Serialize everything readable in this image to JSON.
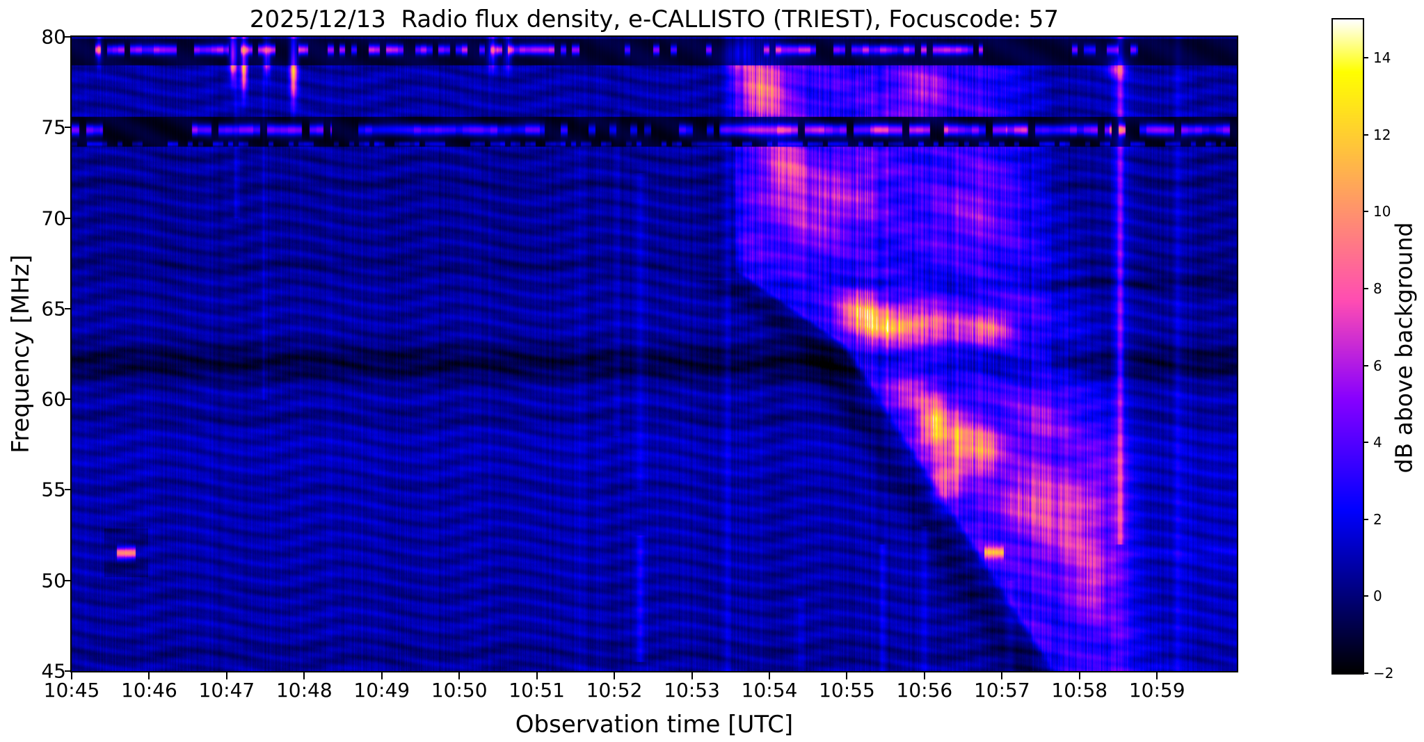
{
  "figure": {
    "title": "2025/12/13  Radio flux density, e-CALLISTO (TRIEST), Focuscode: 57",
    "instrument": "e-CALLISTO",
    "station": "TRIEST",
    "focuscode": "57",
    "date": "2025/12/13"
  },
  "axes": {
    "x": {
      "label": "Observation time [UTC]",
      "ticks": [
        "10:45",
        "10:46",
        "10:47",
        "10:48",
        "10:49",
        "10:50",
        "10:51",
        "10:52",
        "10:53",
        "10:54",
        "10:55",
        "10:56",
        "10:57",
        "10:58",
        "10:59"
      ],
      "range_minutes": [
        0,
        15.03
      ]
    },
    "y": {
      "label": "Frequency [MHz]",
      "ticks": [
        80,
        75,
        70,
        65,
        60,
        55,
        50,
        45
      ],
      "range": [
        45,
        80
      ]
    }
  },
  "colorbar": {
    "label": "dB above background",
    "ticks": [
      14,
      12,
      10,
      8,
      6,
      4,
      2,
      0,
      -2
    ],
    "range": [
      -2,
      15
    ],
    "colormap": "gnuplot2"
  },
  "chart_data": {
    "type": "heatmap",
    "subtype": "solar-radio-spectrogram",
    "title": "2025/12/13  Radio flux density, e-CALLISTO (TRIEST), Focuscode: 57",
    "xlabel": "Observation time [UTC]",
    "ylabel": "Frequency [MHz]",
    "colorbar_label": "dB above background",
    "colormap": "gnuplot2",
    "x_ticks": [
      "10:45",
      "10:46",
      "10:47",
      "10:48",
      "10:49",
      "10:50",
      "10:51",
      "10:52",
      "10:53",
      "10:54",
      "10:55",
      "10:56",
      "10:57",
      "10:58",
      "10:59"
    ],
    "ylim": [
      45,
      80
    ],
    "clim": [
      -2,
      15
    ],
    "grid": false,
    "events": [
      "Drifting solar radio burst: onset ~10:53.4 UT at 67-80 MHz, leading edge drifts down to ~47 MHz by ~10:57.3 UT, emission fading by ~10:59 UT",
      "Bright burst cores: 62-66 MHz near 10:55, 56-61 MHz near 10:56 (up to ~13 dB above background)",
      "Persistent RFI channels with dark interference bands at ~79.3 MHz and ~74.9 MHz",
      "Narrow RFI bursts at 51.5 MHz near 10:45.7 and 10:56.9",
      "Bright broadband vertical stripe at ~10:58.5",
      "Dark absorption-like bands near 62-64 MHz and 58.5-59.5 MHz; wavy interference-fringe background"
    ],
    "render_model": {
      "tmax": 15.03,
      "background": {
        "mean": 0.78
      },
      "bands": [
        [
          62.0,
          1.1,
          -1.7
        ],
        [
          59.0,
          0.55,
          -0.65
        ],
        [
          67.4,
          0.3,
          -0.5
        ],
        [
          71.9,
          0.35,
          -0.5
        ],
        [
          55.2,
          0.4,
          -0.3
        ],
        [
          46.0,
          0.7,
          -0.45
        ],
        [
          49.3,
          0.4,
          -0.25
        ],
        [
          69.0,
          4.0,
          -0.3
        ],
        [
          57.5,
          4.0,
          0.22
        ],
        [
          73.3,
          0.3,
          -0.4
        ]
      ],
      "cond_bands": [
        [
          66.4,
          0.35,
          -1.3,
          9.0
        ]
      ],
      "burst": {
        "t_on_high": [
          8.42,
          0.008
        ],
        "t_on_mid": [
          8.55,
          0.3375
        ],
        "t_on_low": [
          9.9,
          0.15
        ],
        "f_break_high": 67,
        "f_break_low": 63,
        "t_off": [
          14.15,
          0.052
        ],
        "amp": 2.4,
        "stripe_amp": 1.6,
        "wedge": [
          1.1,
          0.32,
          0.28
        ],
        "late_tail": [
          13.9,
          0.45,
          63
        ]
      },
      "cores": [
        [
          8.95,
          77.2,
          0.3,
          2.2,
          5.5
        ],
        [
          9.2,
          72.8,
          0.25,
          1.8,
          4.6
        ],
        [
          9.45,
          70.3,
          0.5,
          2.5,
          2.4
        ],
        [
          8.62,
          79.2,
          0.18,
          0.8,
          5.0
        ],
        [
          10.05,
          71.5,
          0.5,
          2.2,
          2.2
        ],
        [
          10.95,
          77.0,
          0.35,
          1.5,
          2.6
        ],
        [
          11.6,
          70.5,
          0.5,
          2.5,
          2.0
        ],
        [
          10.15,
          64.8,
          0.26,
          1.2,
          6.8
        ],
        [
          10.5,
          64.0,
          0.33,
          1.1,
          6.3
        ],
        [
          10.95,
          64.2,
          0.42,
          1.0,
          4.8
        ],
        [
          11.55,
          63.8,
          0.45,
          0.9,
          3.4
        ],
        [
          11.9,
          64.0,
          0.22,
          0.9,
          3.8
        ],
        [
          11.12,
          58.6,
          0.2,
          1.4,
          7.6
        ],
        [
          11.45,
          57.6,
          0.22,
          1.6,
          7.2
        ],
        [
          11.8,
          57.2,
          0.2,
          1.3,
          5.6
        ],
        [
          11.28,
          55.3,
          0.18,
          1.1,
          5.0
        ],
        [
          10.8,
          60.5,
          0.3,
          1.5,
          3.2
        ],
        [
          12.4,
          54.5,
          0.45,
          1.8,
          3.8
        ],
        [
          12.85,
          53.0,
          0.4,
          2.4,
          3.2
        ],
        [
          13.15,
          49.8,
          0.3,
          1.8,
          2.8
        ],
        [
          12.55,
          58.8,
          0.45,
          1.4,
          2.4
        ],
        [
          13.35,
          55.5,
          0.4,
          3.5,
          1.8
        ],
        [
          13.48,
          78.3,
          0.12,
          0.5,
          4.5
        ],
        [
          2.08,
          79.0,
          0.05,
          1.2,
          10
        ],
        [
          2.22,
          78.6,
          0.04,
          1.6,
          12
        ],
        [
          2.52,
          78.9,
          0.04,
          0.9,
          8
        ],
        [
          2.86,
          78.3,
          0.05,
          1.8,
          11
        ],
        [
          5.42,
          79.2,
          0.06,
          0.9,
          7
        ],
        [
          5.62,
          79.2,
          0.05,
          0.9,
          7
        ],
        [
          0.35,
          79.3,
          0.04,
          0.8,
          6
        ]
      ],
      "vlines": [
        [
          13.52,
          0.045,
          3.6,
          52,
          80
        ],
        [
          13.52,
          0.16,
          1.1,
          45,
          80
        ],
        [
          14.27,
          0.05,
          1.25,
          45,
          80
        ],
        [
          7.33,
          0.06,
          1.7,
          45.5,
          52.5
        ],
        [
          7.33,
          0.07,
          0.9,
          55,
          72.5
        ],
        [
          7.02,
          0.05,
          0.75,
          58,
          76
        ],
        [
          6.55,
          0.05,
          0.5,
          45,
          76
        ],
        [
          2.12,
          0.035,
          1.1,
          70,
          80
        ],
        [
          2.48,
          0.03,
          0.8,
          60,
          80
        ],
        [
          8.45,
          0.05,
          1.0,
          45,
          80
        ],
        [
          9.4,
          0.05,
          0.8,
          45,
          49
        ],
        [
          10.45,
          0.04,
          1.5,
          45,
          52
        ],
        [
          11.0,
          0.05,
          1.2,
          45,
          53
        ],
        [
          12.1,
          0.05,
          1.0,
          45,
          50
        ]
      ],
      "rfi79": {
        "freq": 79.3,
        "band": [
          78.45,
          79.92
        ],
        "dash": 0.075,
        "segs": [
          [
            0.25,
            3.05,
            0.3,
            1
          ],
          [
            3.3,
            6.55,
            0.3,
            1
          ],
          [
            8.9,
            11.75,
            0.3,
            1
          ],
          [
            12.85,
            13.75,
            0.3,
            0.8
          ],
          [
            6.8,
            8.9,
            0.82,
            0.9
          ]
        ]
      },
      "rfi74": {
        "freq": 74.88,
        "band": [
          73.95,
          75.62
        ],
        "dash": 0.09,
        "segs": [
          [
            0.0,
            0.4,
            0.12,
            1
          ],
          [
            1.55,
            3.35,
            0.12,
            1
          ],
          [
            3.6,
            6.1,
            0.12,
            0.85
          ],
          [
            8.35,
            15.03,
            0.12,
            1
          ],
          [
            6.1,
            8.35,
            0.78,
            0.7
          ]
        ],
        "boosts": [
          [
            13.38,
            13.64,
            4.5
          ],
          [
            9.0,
            9.7,
            2.2
          ],
          [
            10.3,
            11.3,
            2.2
          ],
          [
            12.05,
            12.32,
            1.8
          ]
        ],
        "speckle_freq": 74.1
      },
      "rfi51": {
        "freq": 51.55,
        "segs": [
          [
            0.58,
            0.82,
            8.5
          ],
          [
            11.77,
            12.02,
            7.5
          ]
        ],
        "ring": [
          0.42,
          0.98
        ],
        "tail_after": 11.7,
        "tail_amp": 0.65
      }
    }
  }
}
